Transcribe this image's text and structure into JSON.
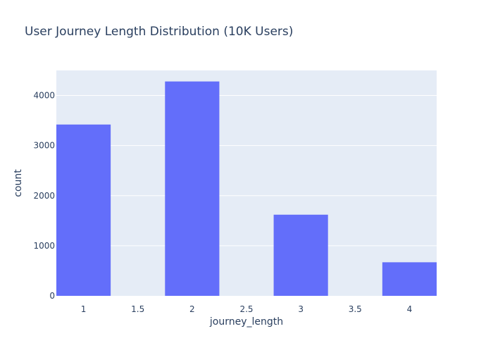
{
  "chart_data": {
    "type": "bar",
    "title": "User Journey Length Distribution (10K Users)",
    "xlabel": "journey_length",
    "ylabel": "count",
    "x": [
      1,
      2,
      3,
      4
    ],
    "values": [
      3420,
      4280,
      1620,
      670
    ],
    "bar_width": 0.5,
    "xlim": [
      1,
      4
    ],
    "ylim": [
      0,
      4500
    ],
    "x_ticks": [
      1,
      1.5,
      2,
      2.5,
      3,
      3.5,
      4
    ],
    "x_tick_labels": [
      "1",
      "1.5",
      "2",
      "2.5",
      "3",
      "3.5",
      "4"
    ],
    "y_ticks": [
      0,
      1000,
      2000,
      3000,
      4000
    ],
    "y_tick_labels": [
      "0",
      "1000",
      "2000",
      "3000",
      "4000"
    ],
    "grid": true,
    "colors": {
      "plot_background": "#e5ecf6",
      "bar": "#636efa",
      "grid": "#ffffff",
      "text": "#2a3f5f"
    }
  }
}
